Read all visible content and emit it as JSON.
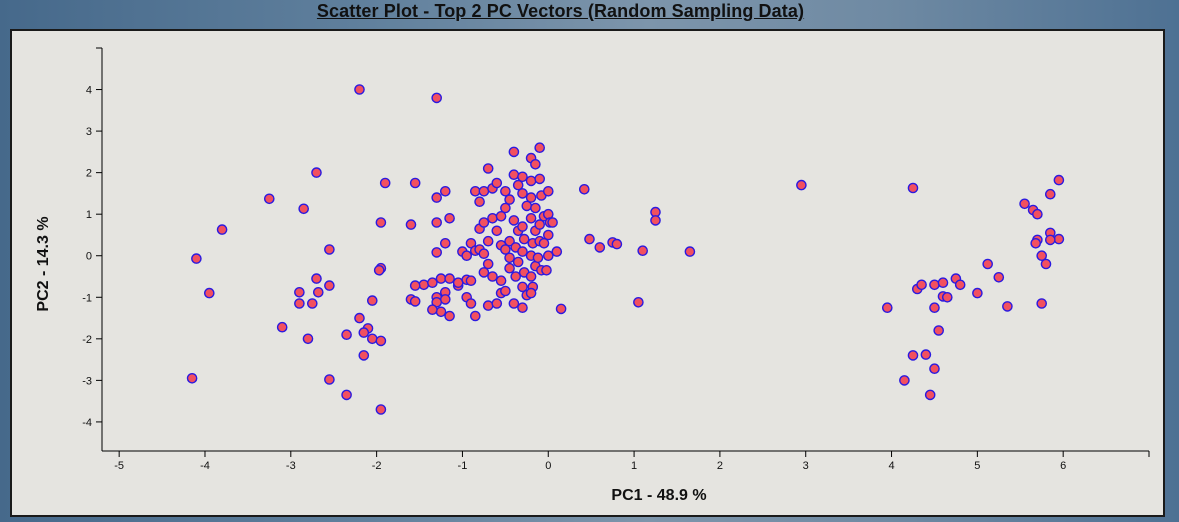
{
  "title": "Scatter Plot - Top 2 PC Vectors (Random Sampling Data)",
  "colors": {
    "point_fill": "#f2505f",
    "point_stroke": "#2b1ae0",
    "axis": "#000000",
    "panel_bg": "#e5e4e0"
  },
  "chart_data": {
    "type": "scatter",
    "title": "Scatter Plot - Top 2 PC Vectors (Random Sampling Data)",
    "xlabel": "PC1 - 48.9 %",
    "ylabel": "PC2 - 14.3 %",
    "xlim": [
      -5.2,
      7
    ],
    "ylim": [
      -4.7,
      5
    ],
    "xticks": [
      -5,
      -4,
      -3,
      -2,
      -1,
      0,
      1,
      2,
      3,
      4,
      5,
      6
    ],
    "yticks": [
      -4,
      -3,
      -2,
      -1,
      0,
      1,
      2,
      3,
      4
    ],
    "grid": false,
    "legend": "none",
    "points": [
      [
        -2.2,
        4.0
      ],
      [
        -1.3,
        3.8
      ],
      [
        -2.7,
        2.0
      ],
      [
        -1.9,
        1.75
      ],
      [
        -3.25,
        1.37
      ],
      [
        -2.85,
        1.13
      ],
      [
        -3.8,
        0.63
      ],
      [
        -4.1,
        -0.07
      ],
      [
        -3.95,
        -0.9
      ],
      [
        -4.15,
        -2.95
      ],
      [
        -2.55,
        0.15
      ],
      [
        -2.7,
        -0.55
      ],
      [
        -2.55,
        -0.72
      ],
      [
        -2.68,
        -0.88
      ],
      [
        -2.9,
        -0.88
      ],
      [
        -2.9,
        -1.15
      ],
      [
        -2.75,
        -1.15
      ],
      [
        -3.1,
        -1.72
      ],
      [
        -2.8,
        -2.0
      ],
      [
        -2.55,
        -2.98
      ],
      [
        -2.35,
        -3.35
      ],
      [
        -1.95,
        -0.3
      ],
      [
        -1.97,
        -0.35
      ],
      [
        -2.05,
        -1.08
      ],
      [
        -2.2,
        -1.5
      ],
      [
        -2.1,
        -1.75
      ],
      [
        -2.15,
        -1.85
      ],
      [
        -2.05,
        -2.0
      ],
      [
        -1.95,
        -2.05
      ],
      [
        -2.35,
        -1.9
      ],
      [
        -2.15,
        -2.4
      ],
      [
        -1.95,
        -3.7
      ],
      [
        -1.95,
        0.8
      ],
      [
        -1.55,
        1.75
      ],
      [
        -1.6,
        0.75
      ],
      [
        -1.2,
        1.55
      ],
      [
        -1.3,
        1.4
      ],
      [
        -1.3,
        0.8
      ],
      [
        -1.15,
        0.9
      ],
      [
        -1.2,
        0.3
      ],
      [
        -1.3,
        0.08
      ],
      [
        -1.45,
        -0.7
      ],
      [
        -1.55,
        -0.72
      ],
      [
        -1.35,
        -0.65
      ],
      [
        -1.25,
        -0.55
      ],
      [
        -1.15,
        -0.55
      ],
      [
        -1.05,
        -0.72
      ],
      [
        -1.2,
        -0.88
      ],
      [
        -1.3,
        -1.0
      ],
      [
        -1.2,
        -1.05
      ],
      [
        -1.3,
        -1.12
      ],
      [
        -1.25,
        -1.35
      ],
      [
        -1.15,
        -1.45
      ],
      [
        -1.35,
        -1.3
      ],
      [
        -1.6,
        -1.05
      ],
      [
        -1.55,
        -1.1
      ],
      [
        -1.05,
        -0.65
      ],
      [
        -1.0,
        0.1
      ],
      [
        -0.95,
        0.0
      ],
      [
        -0.95,
        -0.58
      ],
      [
        -0.9,
        0.3
      ],
      [
        -0.85,
        0.12
      ],
      [
        -0.8,
        0.15
      ],
      [
        -0.75,
        0.05
      ],
      [
        -0.9,
        -0.6
      ],
      [
        -0.95,
        -1.0
      ],
      [
        -0.9,
        -1.15
      ],
      [
        -0.85,
        -1.45
      ],
      [
        -0.8,
        0.65
      ],
      [
        -0.85,
        1.55
      ],
      [
        -0.8,
        1.3
      ],
      [
        -0.75,
        1.55
      ],
      [
        -0.75,
        0.8
      ],
      [
        -0.7,
        0.35
      ],
      [
        -0.7,
        -0.2
      ],
      [
        -0.75,
        -0.4
      ],
      [
        -0.7,
        2.1
      ],
      [
        -0.65,
        1.62
      ],
      [
        -0.6,
        1.75
      ],
      [
        -0.65,
        0.9
      ],
      [
        -0.6,
        0.6
      ],
      [
        -0.55,
        0.25
      ],
      [
        -0.65,
        -0.5
      ],
      [
        -0.7,
        -1.2
      ],
      [
        -0.6,
        -1.15
      ],
      [
        -0.55,
        -0.9
      ],
      [
        -0.55,
        -0.6
      ],
      [
        -0.5,
        1.55
      ],
      [
        -0.45,
        1.35
      ],
      [
        -0.5,
        1.15
      ],
      [
        -0.55,
        0.95
      ],
      [
        -0.45,
        0.35
      ],
      [
        -0.5,
        0.15
      ],
      [
        -0.45,
        -0.05
      ],
      [
        -0.45,
        -0.3
      ],
      [
        -0.5,
        -0.85
      ],
      [
        -0.4,
        2.5
      ],
      [
        -0.4,
        1.95
      ],
      [
        -0.35,
        1.7
      ],
      [
        -0.4,
        0.85
      ],
      [
        -0.35,
        0.6
      ],
      [
        -0.38,
        0.2
      ],
      [
        -0.35,
        -0.15
      ],
      [
        -0.38,
        -0.5
      ],
      [
        -0.4,
        -1.15
      ],
      [
        -0.3,
        1.9
      ],
      [
        -0.3,
        1.5
      ],
      [
        -0.25,
        1.2
      ],
      [
        -0.3,
        0.7
      ],
      [
        -0.28,
        0.4
      ],
      [
        -0.3,
        0.1
      ],
      [
        -0.28,
        -0.4
      ],
      [
        -0.3,
        -0.75
      ],
      [
        -0.25,
        -0.95
      ],
      [
        -0.3,
        -1.25
      ],
      [
        -0.2,
        2.35
      ],
      [
        -0.15,
        2.2
      ],
      [
        -0.2,
        1.8
      ],
      [
        -0.2,
        1.4
      ],
      [
        -0.15,
        1.15
      ],
      [
        -0.2,
        0.9
      ],
      [
        -0.15,
        0.6
      ],
      [
        -0.18,
        0.3
      ],
      [
        -0.2,
        0.0
      ],
      [
        -0.15,
        -0.25
      ],
      [
        -0.2,
        -0.5
      ],
      [
        -0.18,
        -0.75
      ],
      [
        -0.2,
        -0.9
      ],
      [
        -0.12,
        -0.05
      ],
      [
        -0.1,
        2.6
      ],
      [
        -0.1,
        1.85
      ],
      [
        -0.08,
        1.45
      ],
      [
        -0.1,
        0.75
      ],
      [
        -0.1,
        0.35
      ],
      [
        -0.08,
        -0.35
      ],
      [
        -0.05,
        0.95
      ],
      [
        0.0,
        1.55
      ],
      [
        0.0,
        1.0
      ],
      [
        0.02,
        0.8
      ],
      [
        0.0,
        0.5
      ],
      [
        -0.05,
        0.3
      ],
      [
        0.0,
        0.0
      ],
      [
        -0.02,
        -0.35
      ],
      [
        0.05,
        0.8
      ],
      [
        0.1,
        0.1
      ],
      [
        0.15,
        -1.28
      ],
      [
        0.42,
        1.6
      ],
      [
        0.48,
        0.4
      ],
      [
        0.6,
        0.2
      ],
      [
        0.75,
        0.32
      ],
      [
        0.8,
        0.28
      ],
      [
        1.05,
        -1.12
      ],
      [
        1.1,
        0.12
      ],
      [
        1.25,
        1.05
      ],
      [
        1.25,
        0.85
      ],
      [
        1.65,
        0.1
      ],
      [
        2.95,
        1.7
      ],
      [
        3.95,
        -1.25
      ],
      [
        4.25,
        1.63
      ],
      [
        4.3,
        -0.8
      ],
      [
        4.35,
        -0.7
      ],
      [
        4.25,
        -2.4
      ],
      [
        4.15,
        -3.0
      ],
      [
        4.4,
        -2.38
      ],
      [
        4.5,
        -0.7
      ],
      [
        4.5,
        -1.25
      ],
      [
        4.55,
        -1.8
      ],
      [
        4.6,
        -0.65
      ],
      [
        4.6,
        -0.98
      ],
      [
        4.65,
        -1.0
      ],
      [
        4.5,
        -2.72
      ],
      [
        4.45,
        -3.35
      ],
      [
        4.75,
        -0.55
      ],
      [
        4.8,
        -0.7
      ],
      [
        5.0,
        -0.9
      ],
      [
        5.12,
        -0.2
      ],
      [
        5.25,
        -0.52
      ],
      [
        5.35,
        -1.22
      ],
      [
        5.55,
        1.25
      ],
      [
        5.65,
        1.1
      ],
      [
        5.7,
        1.0
      ],
      [
        5.75,
        0.0
      ],
      [
        5.8,
        -0.2
      ],
      [
        5.75,
        -1.15
      ],
      [
        5.85,
        0.55
      ],
      [
        5.85,
        1.48
      ],
      [
        5.95,
        1.82
      ],
      [
        5.95,
        0.4
      ],
      [
        5.85,
        0.38
      ],
      [
        5.7,
        0.38
      ],
      [
        5.68,
        0.3
      ]
    ]
  }
}
